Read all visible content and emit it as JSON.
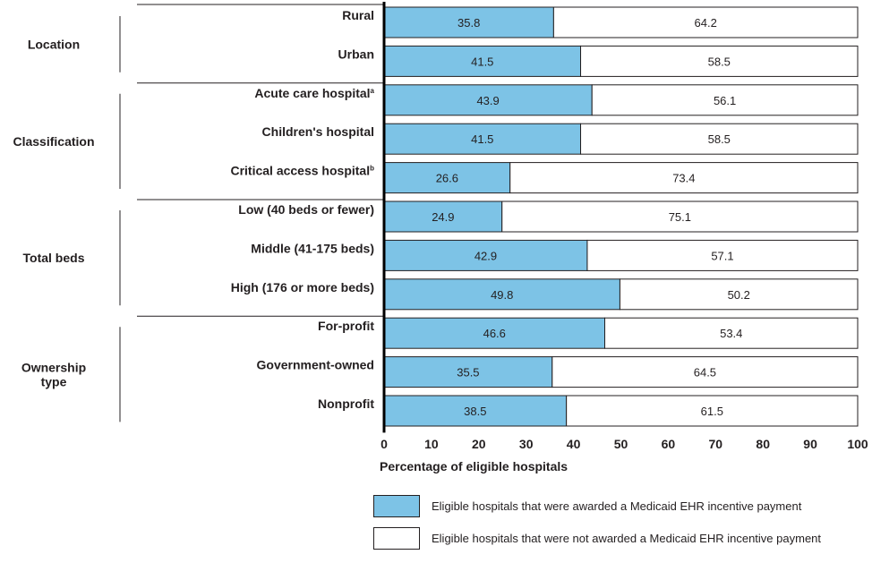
{
  "chart_data": {
    "type": "bar",
    "orientation": "horizontal",
    "stacked": true,
    "xlabel": "Percentage of eligible hospitals",
    "xlim": [
      0,
      100
    ],
    "xticks": [
      0,
      10,
      20,
      30,
      40,
      50,
      60,
      70,
      80,
      90,
      100
    ],
    "groups": [
      {
        "name": "Location",
        "categories": [
          "Rural",
          "Urban"
        ]
      },
      {
        "name": "Classification",
        "categories": [
          "Acute care hospital",
          "Children's hospital",
          "Critical access hospital"
        ]
      },
      {
        "name": "Total beds",
        "categories": [
          "Low (40 beds or fewer)",
          "Middle (41-175 beds)",
          "High (176 or more beds)"
        ]
      },
      {
        "name": "Ownership type",
        "categories": [
          "For-profit",
          "Government-owned",
          "Nonprofit"
        ]
      }
    ],
    "category_superscripts": {
      "Acute care hospital": "a",
      "Critical access hospital": "b"
    },
    "categories": [
      "Rural",
      "Urban",
      "Acute care hospital",
      "Children's hospital",
      "Critical access hospital",
      "Low (40 beds or fewer)",
      "Middle (41-175 beds)",
      "High (176 or more beds)",
      "For-profit",
      "Government-owned",
      "Nonprofit"
    ],
    "series": [
      {
        "name": "Eligible hospitals that were awarded a Medicaid EHR incentive payment",
        "color": "#7dc3e6",
        "values": [
          35.8,
          41.5,
          43.9,
          41.5,
          26.6,
          24.9,
          42.9,
          49.8,
          46.6,
          35.5,
          38.5
        ]
      },
      {
        "name": "Eligible hospitals that were not awarded a Medicaid EHR incentive payment",
        "color": "#ffffff",
        "values": [
          64.2,
          58.5,
          56.1,
          58.5,
          73.4,
          75.1,
          57.1,
          50.2,
          53.4,
          64.5,
          61.5
        ]
      }
    ],
    "legend_position": "bottom",
    "grid": false
  },
  "legend": {
    "awarded": "Eligible hospitals that were awarded a Medicaid EHR incentive payment",
    "not_awarded": "Eligible hospitals that were not awarded a Medicaid EHR incentive payment"
  },
  "colors": {
    "awarded": "#7dc3e6",
    "not_awarded": "#ffffff",
    "ink": "#231f20"
  }
}
